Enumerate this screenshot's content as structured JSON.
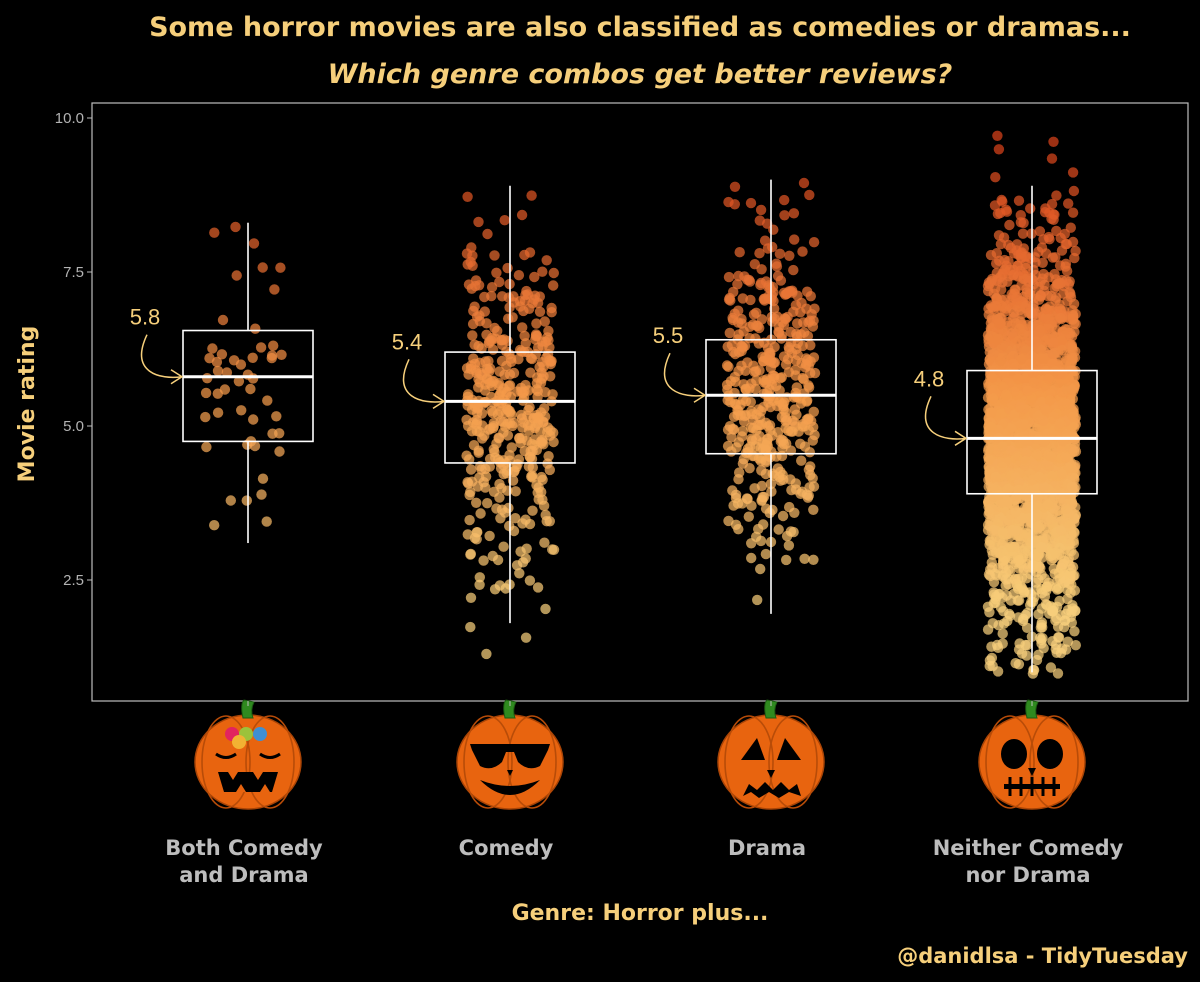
{
  "chart_data": {
    "type": "boxplot",
    "title": "Some horror movies are also classified as comedies or dramas...",
    "subtitle": "Which genre combos get better reviews?",
    "xlabel": "Genre: Horror plus...",
    "ylabel": "Movie rating",
    "ylim": [
      0.9,
      10.3
    ],
    "yticks": [
      "2.5",
      "5.0",
      "7.5",
      "10.0"
    ],
    "ytick_values": [
      2.5,
      5.0,
      7.5,
      10.0
    ],
    "caption": "@danidlsa - TidyTuesday",
    "grid": false,
    "categories": [
      {
        "label_lines": [
          "Both Comedy",
          "and Drama"
        ],
        "median_label": "5.8",
        "q1": 4.75,
        "median": 5.8,
        "q3": 6.55,
        "whisker_low": 3.1,
        "whisker_high": 8.3,
        "n_points": 50,
        "point_min": 3.1,
        "point_max": 8.3,
        "icon": "pumpkin-flowers-icon"
      },
      {
        "label_lines": [
          "Comedy"
        ],
        "median_label": "5.4",
        "q1": 4.4,
        "median": 5.4,
        "q3": 6.2,
        "whisker_low": 1.8,
        "whisker_high": 8.9,
        "n_points": 420,
        "point_min": 1.0,
        "point_max": 9.55,
        "icon": "pumpkin-sunglasses-icon"
      },
      {
        "label_lines": [
          "Drama"
        ],
        "median_label": "5.5",
        "q1": 4.55,
        "median": 5.5,
        "q3": 6.4,
        "whisker_low": 1.95,
        "whisker_high": 9.0,
        "n_points": 440,
        "point_min": 1.85,
        "point_max": 9.05,
        "icon": "pumpkin-sad-icon"
      },
      {
        "label_lines": [
          "Neither Comedy",
          "nor Drama"
        ],
        "median_label": "4.8",
        "q1": 3.9,
        "median": 4.8,
        "q3": 5.9,
        "whisker_low": 1.0,
        "whisker_high": 8.9,
        "n_points": 2600,
        "point_min": 0.95,
        "point_max": 9.75,
        "icon": "pumpkin-skull-icon"
      }
    ],
    "colors": {
      "background": "#000000",
      "panel_border": "#bdbdbd",
      "box": "#ffffff",
      "title": "#f6cf7b",
      "tick_text": "#b3b3b3",
      "point_low": "#f6cf7b",
      "point_mid": "#f49a4a",
      "point_high": "#d9431a"
    }
  }
}
